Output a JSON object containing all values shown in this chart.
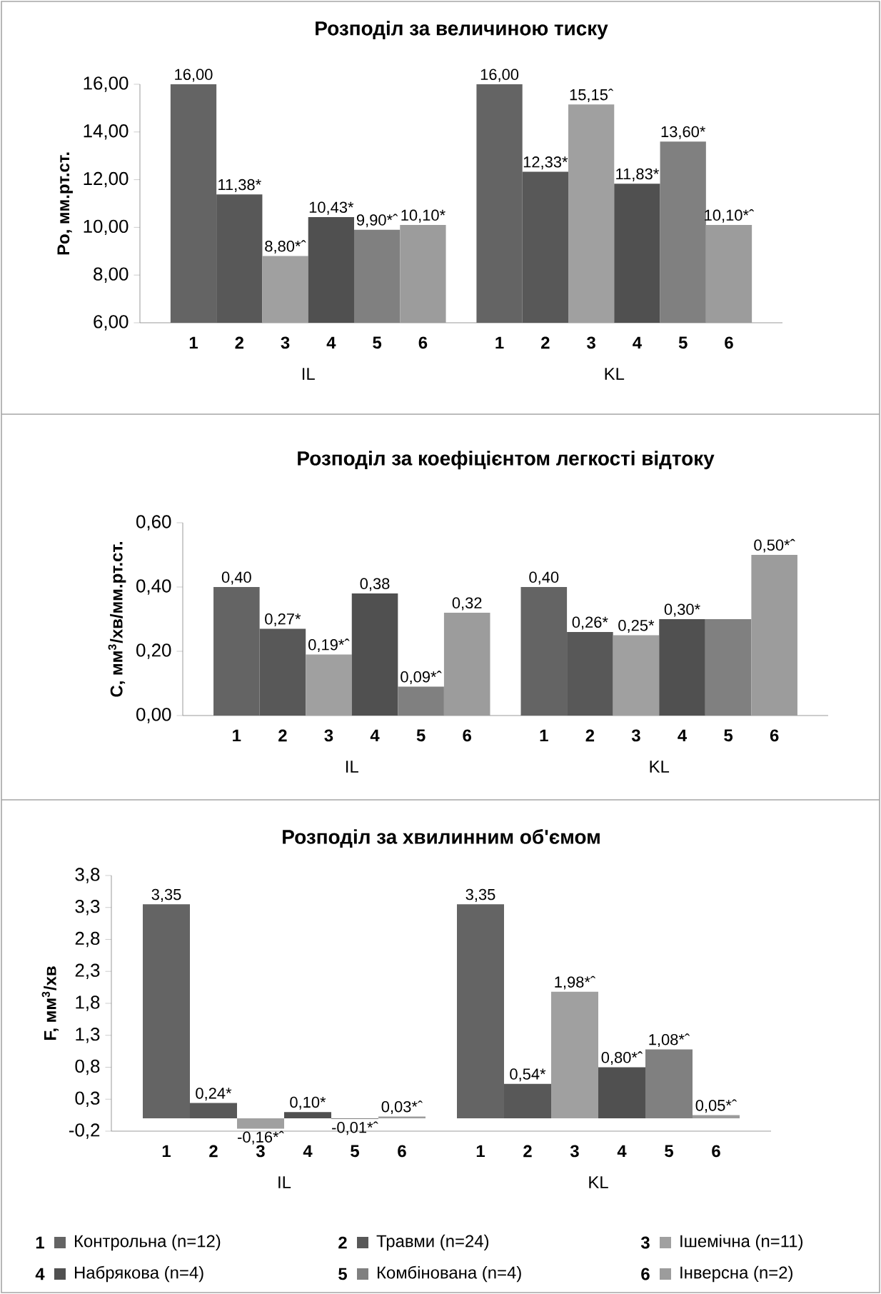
{
  "chart_data": [
    {
      "type": "bar",
      "title": "Розподіл за величиною тиску",
      "ylabel": "Po, мм.рт.ст.",
      "categories": [
        "IL",
        "KL"
      ],
      "ylim": [
        6,
        16
      ],
      "yticks": [
        {
          "value": 6,
          "label": "6,00"
        },
        {
          "value": 8,
          "label": "8,00"
        },
        {
          "value": 10,
          "label": "10,00"
        },
        {
          "value": 12,
          "label": "12,00"
        },
        {
          "value": 14,
          "label": "14,00"
        },
        {
          "value": 16,
          "label": "16,00"
        }
      ],
      "annotations": [
        "1",
        "2",
        "3",
        "4",
        "5",
        "6"
      ],
      "series": [
        {
          "color": "#646464",
          "values": [
            16.0,
            16.0
          ],
          "value_labels": [
            "16,00",
            "16,00"
          ]
        },
        {
          "color": "#585858",
          "values": [
            11.38,
            12.33
          ],
          "value_labels": [
            "11,38*",
            "12,33*"
          ]
        },
        {
          "color": "#a0a0a0",
          "values": [
            8.8,
            15.15
          ],
          "value_labels": [
            "8,80*ˆ",
            "15,15ˆ"
          ]
        },
        {
          "color": "#505050",
          "values": [
            10.43,
            11.83
          ],
          "value_labels": [
            "10,43*",
            "11,83*"
          ]
        },
        {
          "color": "#808080",
          "values": [
            9.9,
            13.6
          ],
          "value_labels": [
            "9,90*ˆ",
            "13,60*"
          ]
        },
        {
          "color": "#9c9c9c",
          "values": [
            10.1,
            10.1
          ],
          "value_labels": [
            "10,10*",
            "10,10*ˆ"
          ]
        }
      ]
    },
    {
      "type": "bar",
      "title": "Розподіл за коефіцієнтом легкості відтоку",
      "ylabel": "C, мм$^{3}$/хв/мм.рт.ст.",
      "categories": [
        "IL",
        "KL"
      ],
      "ylim": [
        0,
        0.6
      ],
      "yticks": [
        {
          "value": 0,
          "label": "0,00"
        },
        {
          "value": 0.2,
          "label": "0,20"
        },
        {
          "value": 0.4,
          "label": "0,40"
        },
        {
          "value": 0.6,
          "label": "0,60"
        }
      ],
      "annotations": [
        "1",
        "2",
        "3",
        "4",
        "5",
        "6"
      ],
      "series": [
        {
          "color": "#646464",
          "values": [
            0.4,
            0.4
          ],
          "value_labels": [
            "0,40",
            "0,40"
          ]
        },
        {
          "color": "#585858",
          "values": [
            0.27,
            0.26
          ],
          "value_labels": [
            "0,27*",
            "0,26*"
          ]
        },
        {
          "color": "#a0a0a0",
          "values": [
            0.19,
            0.25
          ],
          "value_labels": [
            "0,19*ˆ",
            "0,25*"
          ]
        },
        {
          "color": "#505050",
          "values": [
            0.38,
            0.3
          ],
          "value_labels": [
            "0,38",
            "0,30*"
          ]
        },
        {
          "color": "#808080",
          "values": [
            0.09,
            0.3
          ],
          "value_labels": [
            "0,09*ˆ",
            null
          ]
        },
        {
          "color": "#9c9c9c",
          "values": [
            0.32,
            0.5
          ],
          "value_labels": [
            "0,32",
            "0,50*ˆ"
          ]
        }
      ]
    },
    {
      "type": "bar",
      "title": "Розподіл за хвилинним об'ємом",
      "ylabel": "F, мм$^{3}$/хв",
      "categories": [
        "IL",
        "KL"
      ],
      "ylim": [
        -0.2,
        3.8
      ],
      "yticks": [
        {
          "value": -0.2,
          "label": "-0,2"
        },
        {
          "value": 0.3,
          "label": "0,3"
        },
        {
          "value": 0.8,
          "label": "0,8"
        },
        {
          "value": 1.3,
          "label": "1,3"
        },
        {
          "value": 1.8,
          "label": "1,8"
        },
        {
          "value": 2.3,
          "label": "2,3"
        },
        {
          "value": 2.8,
          "label": "2,8"
        },
        {
          "value": 3.3,
          "label": "3,3"
        },
        {
          "value": 3.8,
          "label": "3,8"
        }
      ],
      "annotations": [
        "1",
        "2",
        "3",
        "4",
        "5",
        "6"
      ],
      "legend": "bottom",
      "series": [
        {
          "name": "Контрольна (n=12)",
          "color": "#646464",
          "values": [
            3.35,
            3.35
          ],
          "value_labels": [
            "3,35",
            "3,35"
          ]
        },
        {
          "name": "Травми (n=24)",
          "color": "#585858",
          "values": [
            0.24,
            0.54
          ],
          "value_labels": [
            "0,24*",
            "0,54*"
          ]
        },
        {
          "name": "Ішемічна (n=11)",
          "color": "#a0a0a0",
          "values": [
            -0.16,
            1.98
          ],
          "value_labels": [
            "-0,16*ˆ",
            "1,98*ˆ"
          ]
        },
        {
          "name": "Набрякова (n=4)",
          "color": "#505050",
          "values": [
            0.1,
            0.8
          ],
          "value_labels": [
            "0,10*",
            "0,80*ˆ"
          ]
        },
        {
          "name": "Комбінована (n=4)",
          "color": "#808080",
          "values": [
            -0.01,
            1.08
          ],
          "value_labels": [
            "-0,01*ˆ",
            "1,08*ˆ"
          ]
        },
        {
          "name": "Інверсна (n=2)",
          "color": "#9c9c9c",
          "values": [
            0.03,
            0.05
          ],
          "value_labels": [
            "0,03*ˆ",
            "0,05*ˆ"
          ]
        }
      ]
    }
  ]
}
